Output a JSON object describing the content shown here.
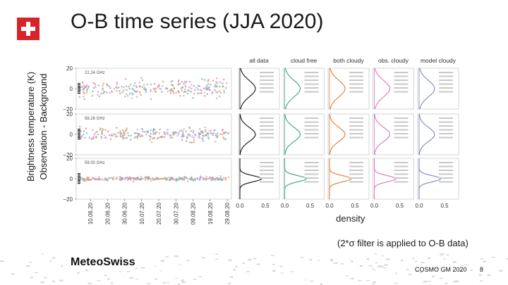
{
  "slide": {
    "title": "O-B time series (JJA 2020)",
    "y_axis_label_line1": "Brightness temperature (K)",
    "y_axis_label_line2": "Observation - Background",
    "note": "(2*σ filter is applied to O-B data)",
    "brand": "MeteoSwiss",
    "footer_text": "COSMO GM 2020",
    "page_number": "8"
  },
  "colors": {
    "flag_red": "#d8232a",
    "series_green": "#6cc5a3",
    "series_orange": "#e8956b",
    "series_purple": "#9ea2d6",
    "series_pink": "#e79ac7",
    "black": "#111111"
  },
  "chart_data": {
    "type": "scatter",
    "time_axis": {
      "tick_labels": [
        "10.06.20",
        "20.06.20",
        "30.06.20",
        "10.07.20",
        "20.07.20",
        "30.07.20",
        "09.08.20",
        "19.08.20",
        "29.08.20"
      ],
      "ylim": [
        -20,
        20
      ],
      "ytick_labels": [
        "20",
        "0",
        "−20"
      ]
    },
    "rows": [
      {
        "channel_label": "22.24 GHz",
        "spread": 6
      },
      {
        "channel_label": "58.26 GHz",
        "spread": 5
      },
      {
        "channel_label": "59.00 GHz",
        "spread": 1.5
      }
    ],
    "density_panels": {
      "titles": [
        "all data",
        "cloud free",
        "both cloudy",
        "obs. cloudy",
        "model cloudy"
      ],
      "colors": [
        "#111111",
        "#3aa37d",
        "#e07a3c",
        "#d976b8",
        "#7e86c8"
      ],
      "xtick_labels": [
        "0.0",
        "0.5"
      ],
      "xlabel": "density"
    }
  }
}
